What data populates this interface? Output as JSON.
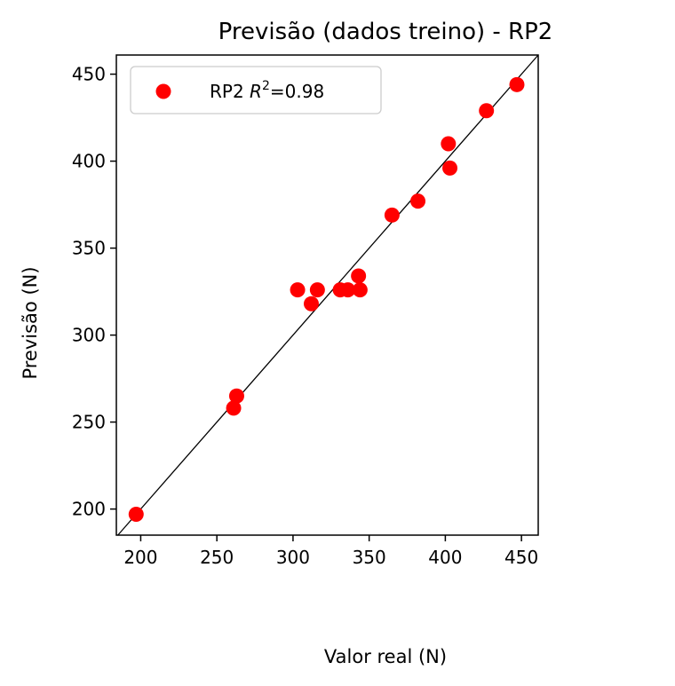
{
  "chart_data": {
    "type": "scatter",
    "title": "Previsão (dados treino) - RP2",
    "xlabel": "Valor real (N)",
    "ylabel": "Previsão (N)",
    "xlim": [
      184,
      461
    ],
    "ylim": [
      185,
      461
    ],
    "xticks": [
      200,
      250,
      300,
      350,
      400,
      450
    ],
    "yticks": [
      200,
      250,
      300,
      350,
      400,
      450
    ],
    "grid": false,
    "legend_position": "top-left",
    "reference_line": "y = x",
    "series": [
      {
        "name": "RP2",
        "legend_math": "R",
        "legend_superscript": "2",
        "legend_value": "=0.98",
        "color": "#ff0000",
        "points": [
          {
            "x": 197,
            "y": 197
          },
          {
            "x": 261,
            "y": 258
          },
          {
            "x": 263,
            "y": 265
          },
          {
            "x": 303,
            "y": 326
          },
          {
            "x": 312,
            "y": 318
          },
          {
            "x": 316,
            "y": 326
          },
          {
            "x": 331,
            "y": 326
          },
          {
            "x": 336,
            "y": 326
          },
          {
            "x": 343,
            "y": 334
          },
          {
            "x": 344,
            "y": 326
          },
          {
            "x": 365,
            "y": 369
          },
          {
            "x": 382,
            "y": 377
          },
          {
            "x": 402,
            "y": 410
          },
          {
            "x": 403,
            "y": 396
          },
          {
            "x": 427,
            "y": 429
          },
          {
            "x": 447,
            "y": 444
          }
        ]
      }
    ]
  }
}
